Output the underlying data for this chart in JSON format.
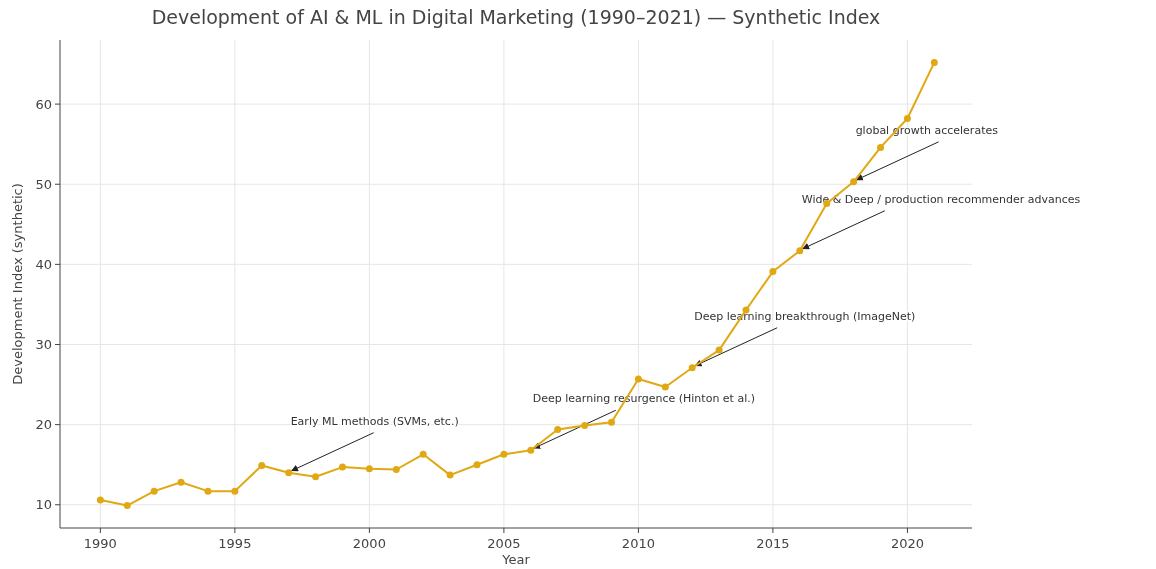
{
  "chart_data": {
    "type": "line",
    "title": "Development of AI & ML in Digital Marketing (1990–2021) — Synthetic Index",
    "xlabel": "Year",
    "ylabel": "Development Index (synthetic)",
    "x": [
      1990,
      1991,
      1992,
      1993,
      1994,
      1995,
      1996,
      1997,
      1998,
      1999,
      2000,
      2001,
      2002,
      2003,
      2004,
      2005,
      2006,
      2007,
      2008,
      2009,
      2010,
      2011,
      2012,
      2013,
      2014,
      2015,
      2016,
      2017,
      2018,
      2019,
      2020,
      2021
    ],
    "series": [
      {
        "color": "#e0a812",
        "values": [
          10.6,
          9.9,
          11.7,
          12.8,
          11.7,
          11.7,
          14.9,
          14.0,
          13.5,
          14.7,
          14.5,
          14.4,
          16.3,
          13.7,
          15.0,
          16.3,
          16.8,
          19.4,
          19.9,
          20.3,
          25.7,
          24.7,
          27.1,
          29.3,
          34.3,
          39.1,
          41.7,
          47.6,
          50.3,
          54.6,
          58.2,
          65.2
        ]
      }
    ],
    "xlim": [
      1988.5,
      2022.4
    ],
    "ylim": [
      7.1,
      68
    ],
    "xticks": [
      1990,
      1995,
      2000,
      2005,
      2010,
      2015,
      2020
    ],
    "yticks": [
      10,
      20,
      30,
      40,
      50,
      60
    ],
    "grid": true,
    "marker": "circle",
    "line_style": "solid",
    "annotations": [
      {
        "text": "Early ML methods (SVMs, etc.)",
        "x": 1997,
        "y": 14.0
      },
      {
        "text": "Deep learning resurgence (Hinton et al.)",
        "x": 2006,
        "y": 16.8
      },
      {
        "text": "Deep learning breakthrough (ImageNet)",
        "x": 2012,
        "y": 27.1
      },
      {
        "text": "Wide & Deep / production recommender advances",
        "x": 2016,
        "y": 41.7
      },
      {
        "text": "global growth accelerates",
        "x": 2018,
        "y": 50.3
      }
    ]
  }
}
